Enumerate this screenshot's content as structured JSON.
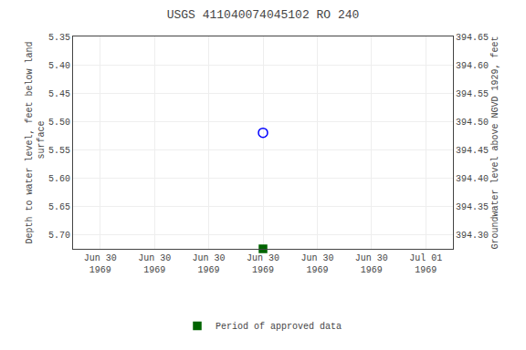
{
  "chart_data": {
    "type": "scatter",
    "title": "USGS 411040074045102 RO 240",
    "ylabel": "Depth to water level, feet below land\n surface",
    "y2label": "Groundwater level above NGVD 1929, feet",
    "categories": [
      "Jun 30\n1969",
      "Jun 30\n1969",
      "Jun 30\n1969",
      "Jun 30\n1969",
      "Jun 30\n1969",
      "Jun 30\n1969",
      "Jul 01\n1969"
    ],
    "series": [
      {
        "color": "blue",
        "marker": "circle-open",
        "values": [
          null,
          null,
          null,
          5.52,
          null,
          null,
          null
        ]
      },
      {
        "name": "Period of approved data",
        "color": "#006400",
        "marker": "square",
        "values": [
          null,
          null,
          null,
          5.725,
          null,
          null,
          null
        ]
      }
    ],
    "ylim": [
      5.725,
      5.35
    ],
    "yticks": [
      5.35,
      {
        "value": 5.4,
        "label": "5.40"
      },
      5.45,
      {
        "value": 5.5,
        "label": "5.50"
      },
      5.55,
      {
        "value": 5.6,
        "label": "5.60"
      },
      5.65,
      {
        "value": 5.7,
        "label": "5.70"
      }
    ],
    "y2lim": [
      394.275,
      394.65
    ],
    "y2ticks": [
      394.65,
      {
        "value": 394.6,
        "label": "394.60"
      },
      394.55,
      {
        "value": 394.5,
        "label": "394.50"
      },
      394.45,
      {
        "value": 394.4,
        "label": "394.40"
      },
      394.35,
      {
        "value": 394.3,
        "label": "394.30"
      }
    ],
    "grid": true,
    "legend": "bottom"
  }
}
